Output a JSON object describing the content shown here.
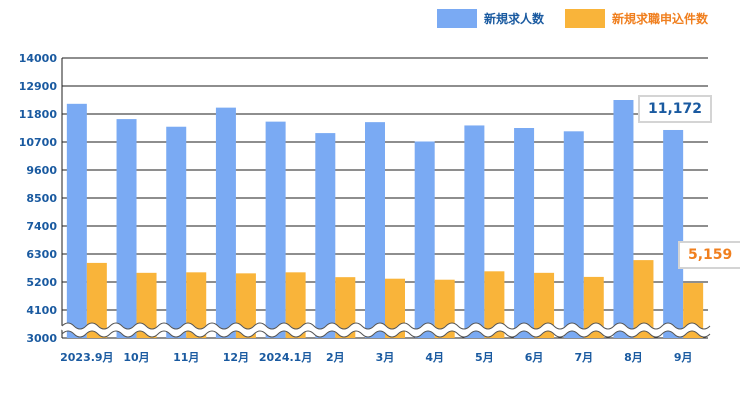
{
  "chart_data": {
    "type": "bar",
    "title": "",
    "xlabel": "",
    "ylabel": "",
    "categories": [
      "2023.9月",
      "10月",
      "11月",
      "12月",
      "2024.1月",
      "2月",
      "3月",
      "4月",
      "5月",
      "6月",
      "7月",
      "8月",
      "9月"
    ],
    "series": [
      {
        "name": "新規求人数",
        "color": "#7aaaf3",
        "values": [
          12200,
          11600,
          11300,
          12050,
          11500,
          11050,
          11480,
          10720,
          11350,
          11250,
          11120,
          12350,
          11172
        ]
      },
      {
        "name": "新規求職申込件数",
        "color": "#f9b43a",
        "values": [
          5950,
          5560,
          5580,
          5540,
          5580,
          5390,
          5330,
          5290,
          5620,
          5560,
          5400,
          6060,
          5159
        ]
      }
    ],
    "ylim": [
      3000,
      14000
    ],
    "yticks": [
      "14000",
      "12900",
      "11800",
      "10700",
      "9600",
      "8500",
      "7400",
      "6300",
      "5200",
      "4100",
      "3000"
    ],
    "axis_break": true,
    "grid": true,
    "legend": "top-right",
    "annotations": [
      {
        "text": "11,172",
        "series": 0,
        "index": 12,
        "color": "#1a5aa0"
      },
      {
        "text": "5,159",
        "series": 1,
        "index": 12,
        "color": "#f07f1e"
      }
    ]
  }
}
